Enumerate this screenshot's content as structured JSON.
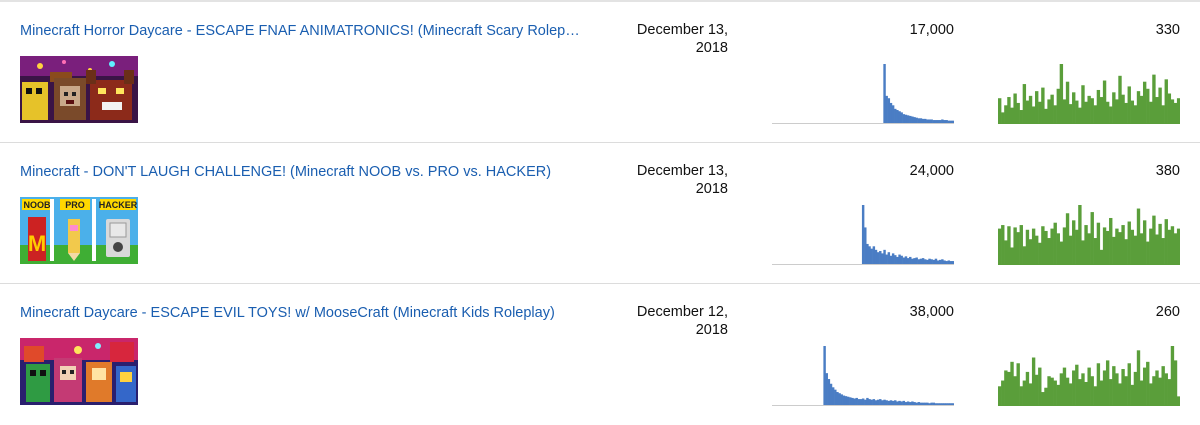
{
  "colors": {
    "link": "#1a5eb0",
    "views_bar": "#4a7dc4",
    "likes_bar": "#5a9e3a",
    "baseline": "#cccccc"
  },
  "videos": [
    {
      "title": "Minecraft Horror Daycare - ESCAPE FNAF ANIMATRONICS! (Minecraft Scary Roleplay)",
      "date_line1": "December 13,",
      "date_line2": "2018",
      "views": "17,000",
      "likes": "330",
      "thumbnail": "thumbnail-fnaf",
      "views_series": [
        0,
        0,
        0,
        0,
        0,
        0,
        0,
        0,
        0,
        0,
        0,
        0,
        0,
        0,
        0,
        0,
        0,
        0,
        0,
        0,
        0,
        0,
        0,
        0,
        0,
        0,
        0,
        0,
        0,
        0,
        0,
        0,
        0,
        0,
        0,
        0,
        0,
        0,
        0,
        0,
        0,
        0,
        0,
        0,
        0,
        0,
        0,
        0,
        0,
        0,
        0,
        0,
        100,
        46,
        42,
        34,
        30,
        24,
        22,
        20,
        18,
        15,
        14,
        13,
        12,
        11,
        10,
        9,
        8,
        8,
        7,
        7,
        6,
        6,
        6,
        5,
        5,
        5,
        5,
        6,
        5,
        5,
        4,
        4,
        4
      ],
      "likes_series": [
        42,
        18,
        30,
        44,
        26,
        50,
        34,
        22,
        66,
        38,
        46,
        28,
        54,
        36,
        60,
        24,
        40,
        48,
        30,
        58,
        100,
        40,
        70,
        32,
        52,
        38,
        26,
        64,
        36,
        46,
        42,
        30,
        56,
        44,
        72,
        36,
        28,
        52,
        40,
        80,
        48,
        34,
        62,
        38,
        30,
        54,
        46,
        70,
        58,
        36,
        82,
        44,
        60,
        30,
        74,
        50,
        40,
        34,
        42
      ]
    },
    {
      "title": "Minecraft - DON'T LAUGH CHALLENGE! (Minecraft NOOB vs. PRO vs. HACKER)",
      "date_line1": "December 13,",
      "date_line2": "2018",
      "views": "24,000",
      "likes": "380",
      "thumbnail": "thumbnail-noob-pro-hacker",
      "views_series": [
        0,
        0,
        0,
        0,
        0,
        0,
        0,
        0,
        0,
        0,
        0,
        0,
        0,
        0,
        0,
        0,
        0,
        0,
        0,
        0,
        0,
        0,
        0,
        0,
        0,
        0,
        0,
        0,
        0,
        0,
        0,
        0,
        0,
        0,
        0,
        0,
        0,
        0,
        0,
        0,
        0,
        0,
        100,
        62,
        34,
        30,
        26,
        30,
        24,
        20,
        22,
        18,
        24,
        16,
        20,
        14,
        18,
        15,
        12,
        16,
        14,
        11,
        13,
        10,
        12,
        9,
        10,
        11,
        8,
        9,
        10,
        8,
        7,
        9,
        8,
        7,
        9,
        6,
        7,
        8,
        6,
        5,
        6,
        5,
        5
      ],
      "likes_series": [
        60,
        66,
        40,
        64,
        28,
        62,
        54,
        66,
        30,
        58,
        42,
        60,
        48,
        36,
        64,
        56,
        44,
        60,
        70,
        52,
        38,
        62,
        86,
        48,
        74,
        58,
        100,
        40,
        66,
        52,
        88,
        44,
        70,
        24,
        62,
        56,
        78,
        46,
        60,
        54,
        66,
        42,
        72,
        58,
        48,
        94,
        52,
        74,
        38,
        60,
        82,
        50,
        68,
        44,
        76,
        58,
        64,
        52,
        60
      ]
    },
    {
      "title": "Minecraft Daycare - ESCAPE EVIL TOYS! w/ MooseCraft (Minecraft Kids Roleplay)",
      "date_line1": "December 12,",
      "date_line2": "2018",
      "views": "38,000",
      "likes": "260",
      "thumbnail": "thumbnail-evil-toys",
      "views_series": [
        0,
        0,
        0,
        0,
        0,
        0,
        0,
        0,
        0,
        0,
        0,
        0,
        0,
        0,
        0,
        0,
        0,
        0,
        0,
        0,
        0,
        0,
        0,
        0,
        100,
        54,
        44,
        36,
        30,
        26,
        22,
        20,
        18,
        16,
        15,
        14,
        13,
        12,
        11,
        12,
        10,
        10,
        11,
        9,
        12,
        10,
        9,
        10,
        8,
        9,
        10,
        8,
        9,
        8,
        7,
        8,
        7,
        8,
        6,
        7,
        6,
        7,
        5,
        6,
        5,
        6,
        5,
        4,
        5,
        4,
        4,
        4,
        4,
        3,
        4,
        4,
        3,
        3,
        3,
        3,
        3,
        3,
        3,
        3,
        3
      ],
      "likes_series": [
        26,
        34,
        48,
        46,
        60,
        40,
        58,
        26,
        34,
        46,
        30,
        66,
        42,
        52,
        18,
        24,
        40,
        38,
        34,
        28,
        44,
        52,
        38,
        30,
        48,
        56,
        36,
        44,
        32,
        52,
        40,
        26,
        58,
        34,
        48,
        62,
        36,
        54,
        44,
        30,
        50,
        40,
        58,
        28,
        46,
        76,
        34,
        52,
        60,
        30,
        40,
        48,
        38,
        54,
        44,
        36,
        82,
        62,
        12
      ]
    }
  ]
}
